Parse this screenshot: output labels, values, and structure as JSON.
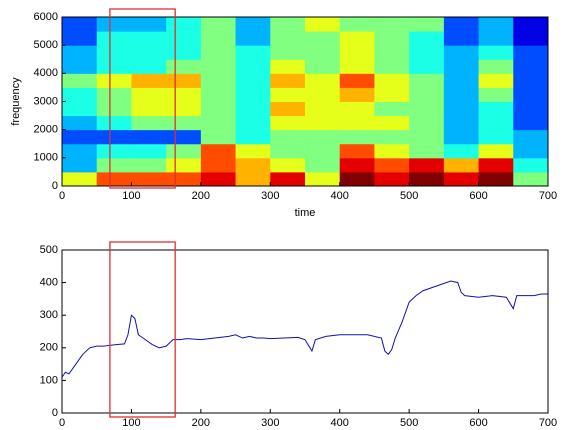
{
  "chart_data": [
    {
      "type": "heatmap",
      "colormap": "jet",
      "xlabel": "time",
      "ylabel": "frequency",
      "x_edges": [
        0,
        50,
        100,
        150,
        200,
        250,
        300,
        350,
        400,
        450,
        500,
        550,
        600,
        650,
        700
      ],
      "y_edges": [
        0,
        500,
        1000,
        1500,
        2000,
        2500,
        3000,
        3500,
        4000,
        4500,
        5000,
        5500,
        6000
      ],
      "clim": [
        0,
        10
      ],
      "z": [
        [
          6,
          8,
          8,
          8,
          9,
          7,
          9,
          6,
          10,
          9,
          10,
          9,
          10,
          5
        ],
        [
          3,
          5,
          5,
          6,
          8,
          7,
          6,
          5,
          9,
          8,
          9,
          7,
          9,
          4
        ],
        [
          3,
          4,
          4,
          5,
          8,
          6,
          5,
          5,
          8,
          6,
          5,
          4,
          6,
          3
        ],
        [
          2,
          2,
          2,
          2,
          5,
          4,
          5,
          5,
          5,
          5,
          5,
          3,
          4,
          3
        ],
        [
          3,
          4,
          5,
          5,
          5,
          4,
          6,
          6,
          6,
          6,
          5,
          3,
          4,
          2
        ],
        [
          4,
          5,
          6,
          6,
          5,
          4,
          7,
          6,
          6,
          5,
          5,
          3,
          4,
          2
        ],
        [
          4,
          5,
          6,
          6,
          5,
          4,
          6,
          6,
          7,
          6,
          5,
          3,
          5,
          2
        ],
        [
          5,
          6,
          7,
          7,
          5,
          4,
          7,
          6,
          8,
          6,
          5,
          3,
          6,
          2
        ],
        [
          3,
          4,
          4,
          5,
          5,
          4,
          6,
          5,
          6,
          5,
          4,
          3,
          5,
          2
        ],
        [
          3,
          4,
          4,
          4,
          5,
          4,
          5,
          5,
          6,
          5,
          4,
          3,
          4,
          2
        ],
        [
          2,
          4,
          4,
          4,
          5,
          3,
          5,
          5,
          6,
          5,
          4,
          2,
          3,
          1
        ],
        [
          2,
          3,
          3,
          4,
          5,
          3,
          5,
          6,
          5,
          5,
          5,
          2,
          3,
          1
        ]
      ],
      "xlim": [
        0,
        700
      ],
      "xticks": [
        0,
        100,
        200,
        300,
        400,
        500,
        600,
        700
      ],
      "ylim": [
        0,
        6000
      ],
      "yticks": [
        0,
        1000,
        2000,
        3000,
        4000,
        5000,
        6000
      ],
      "highlight_x": [
        69,
        163
      ],
      "highlight_color": "#e03030"
    },
    {
      "type": "line",
      "color": "#1010b0",
      "x": [
        0,
        5,
        10,
        20,
        30,
        40,
        50,
        60,
        70,
        80,
        90,
        95,
        100,
        105,
        110,
        120,
        130,
        140,
        150,
        160,
        170,
        180,
        200,
        220,
        240,
        250,
        260,
        270,
        280,
        290,
        300,
        320,
        340,
        350,
        360,
        365,
        380,
        400,
        420,
        440,
        460,
        465,
        470,
        475,
        480,
        490,
        500,
        510,
        520,
        540,
        560,
        570,
        575,
        580,
        600,
        620,
        640,
        650,
        655,
        660,
        680,
        690,
        700
      ],
      "values": [
        110,
        125,
        120,
        150,
        180,
        200,
        205,
        205,
        208,
        210,
        212,
        240,
        300,
        290,
        240,
        225,
        210,
        200,
        205,
        225,
        225,
        228,
        225,
        230,
        235,
        240,
        230,
        235,
        230,
        230,
        228,
        230,
        232,
        225,
        190,
        225,
        235,
        240,
        240,
        240,
        230,
        190,
        180,
        195,
        230,
        280,
        340,
        360,
        375,
        390,
        405,
        400,
        370,
        360,
        355,
        360,
        355,
        320,
        360,
        360,
        360,
        365,
        365
      ],
      "xlim": [
        0,
        700
      ],
      "xticks": [
        0,
        100,
        200,
        300,
        400,
        500,
        600,
        700
      ],
      "ylim": [
        0,
        500
      ],
      "yticks": [
        0,
        100,
        200,
        300,
        400,
        500
      ],
      "highlight_x": [
        69,
        163
      ],
      "highlight_color": "#e03030"
    }
  ]
}
